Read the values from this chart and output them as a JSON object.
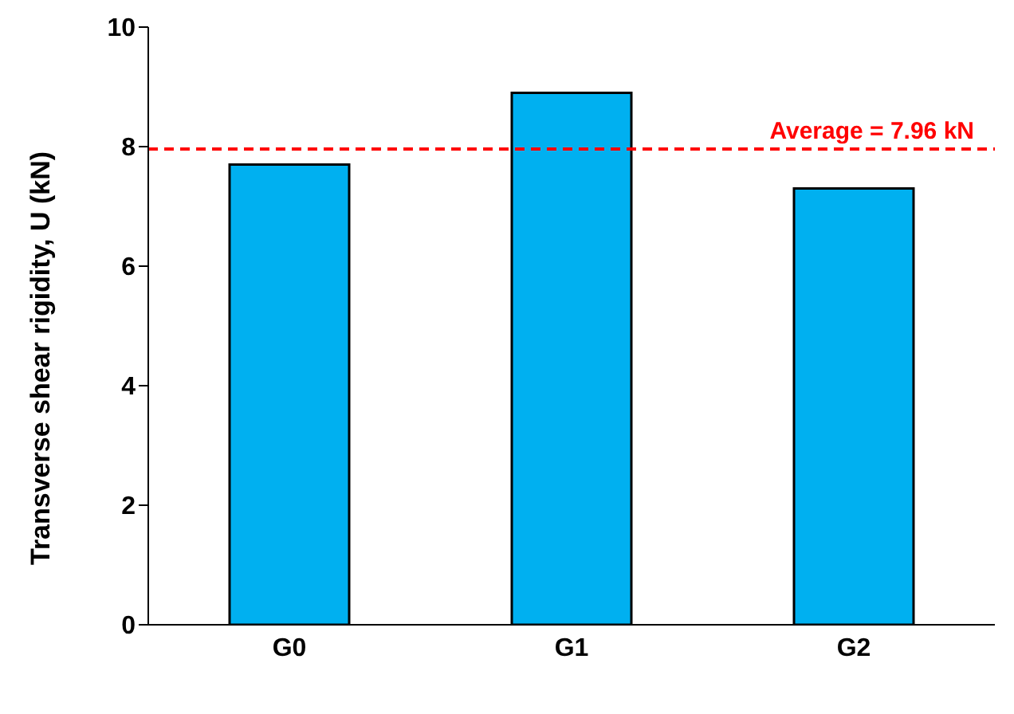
{
  "chart_data": {
    "type": "bar",
    "ylabel": "Transverse shear rigidity, U (kN)",
    "categories": [
      "G0",
      "G1",
      "G2"
    ],
    "values": [
      7.7,
      8.9,
      7.3
    ],
    "color": "#00b0f0",
    "ylim": [
      0,
      10
    ],
    "yticks": [
      0,
      2,
      4,
      6,
      8,
      10
    ],
    "grid": false,
    "ref_lines": [
      {
        "axis": "y",
        "value": 7.96,
        "label": "Average = 7.96 kN",
        "color": "#ff0000",
        "line_style": "dashed"
      }
    ]
  }
}
